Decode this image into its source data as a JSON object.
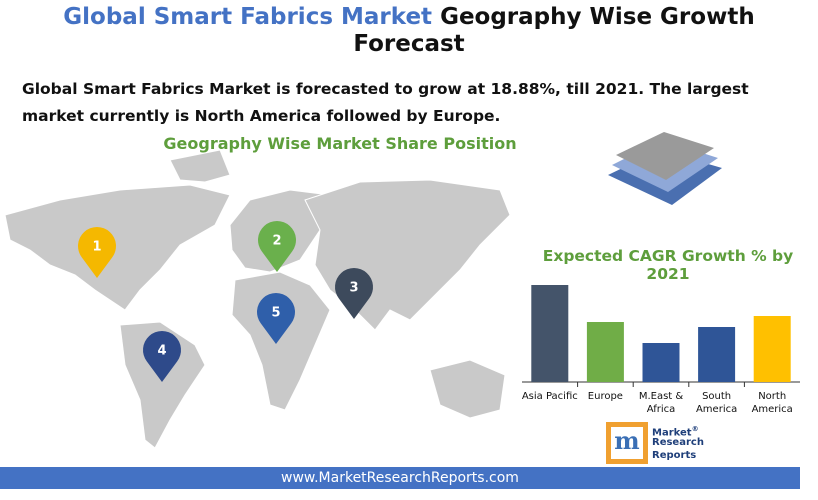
{
  "header": {
    "title_highlight": "Global Smart Fabrics Market",
    "title_rest": "Geography Wise Growth Forecast",
    "summary": "Global Smart Fabrics Market is forecasted to grow at 18.88%, till 2021. The largest market currently is North America followed by Europe."
  },
  "map": {
    "heading": "Geography Wise Market Share Position",
    "pins": [
      "1",
      "2",
      "3",
      "4",
      "5"
    ]
  },
  "chart_data": {
    "type": "bar",
    "title": "Expected CAGR Growth % by 2021",
    "categories": [
      "Asia Pacific",
      "Europe",
      "M.East & Africa",
      "South America",
      "North America"
    ],
    "values": [
      97,
      60,
      39,
      55,
      66
    ],
    "colors": [
      "#44546a",
      "#70ad47",
      "#2f5597",
      "#2f5597",
      "#ffc000"
    ],
    "ylim": [
      0,
      100
    ]
  },
  "logo": {
    "line1": "Market",
    "line2": "Research",
    "line3": "Reports",
    "mark": "®"
  },
  "footer": {
    "url": "www.MarketResearchReports.com"
  }
}
